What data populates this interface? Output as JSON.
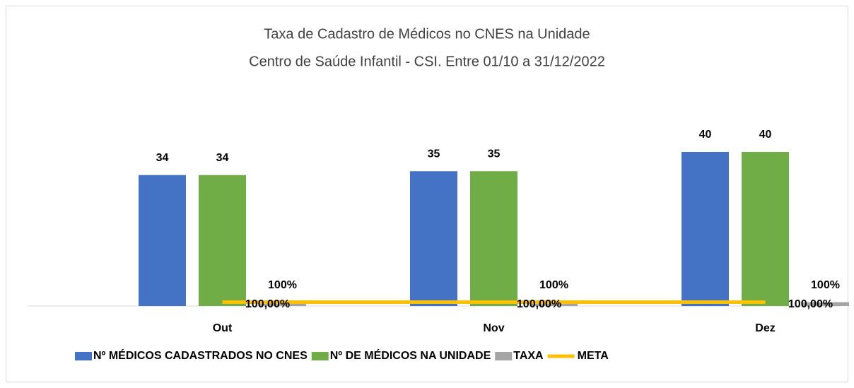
{
  "chart_data": {
    "type": "bar",
    "title": "Taxa de Cadastro de Médicos no CNES na Unidade",
    "subtitle": "Centro de Saúde Infantil - CSI. Entre 01/10 a 31/12/2022",
    "categories": [
      "Out",
      "Nov",
      "Dez"
    ],
    "ylim": [
      0,
      50
    ],
    "series": [
      {
        "name": "Nº MÉDICOS CADASTRADOS NO CNES",
        "color": "#4472c4",
        "type": "bar",
        "values": [
          34,
          35,
          40
        ]
      },
      {
        "name": "Nº DE MÉDICOS NA UNIDADE",
        "color": "#70ad47",
        "type": "bar",
        "values": [
          34,
          35,
          40
        ]
      },
      {
        "name": "TAXA",
        "color": "#a5a5a5",
        "type": "bar",
        "values": [
          1,
          1,
          1
        ],
        "value_labels": [
          "100%",
          "100%",
          "100%"
        ]
      },
      {
        "name": "META",
        "color": "#ffc000",
        "type": "line",
        "values": [
          1,
          1,
          1
        ],
        "value_labels": [
          "100,00%",
          "100,00%",
          "100,00%"
        ]
      }
    ]
  }
}
